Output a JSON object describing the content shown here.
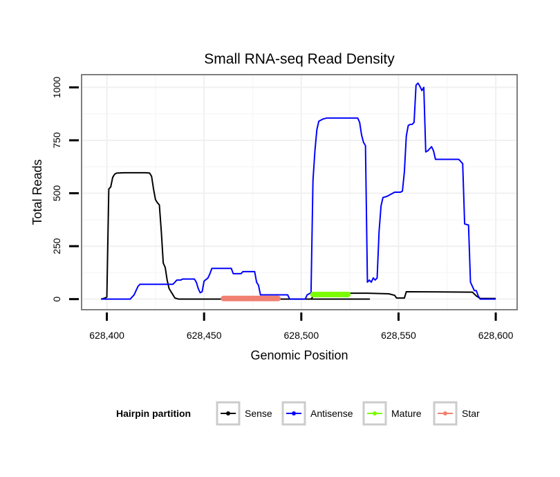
{
  "chart_data": {
    "type": "line",
    "title": "Small RNA-seq Read Density",
    "xlabel": "Genomic Position",
    "ylabel": "Total Reads",
    "xlim": [
      628387,
      628611
    ],
    "ylim": [
      -50,
      1060
    ],
    "x_ticks": [
      628400,
      628450,
      628500,
      628550,
      628600
    ],
    "x_tick_labels": [
      "628,400",
      "628,450",
      "628,500",
      "628,550",
      "628,600"
    ],
    "y_ticks": [
      0,
      250,
      500,
      750,
      1000
    ],
    "y_tick_labels": [
      "0",
      "250",
      "500",
      "750",
      "1000"
    ],
    "grid": true,
    "legend": {
      "title": "Hairpin partition",
      "position": "bottom",
      "entries": [
        {
          "name": "Sense",
          "color": "#000000"
        },
        {
          "name": "Antisense",
          "color": "#0000ff"
        },
        {
          "name": "Mature",
          "color": "#7cfc00"
        },
        {
          "name": "Star",
          "color": "#f08070"
        }
      ]
    },
    "series": [
      {
        "name": "Sense",
        "color": "#000000",
        "points": [
          [
            628397,
            0
          ],
          [
            628399,
            5
          ],
          [
            628400,
            10
          ],
          [
            628401,
            520
          ],
          [
            628402,
            530
          ],
          [
            628403,
            575
          ],
          [
            628404,
            590
          ],
          [
            628405,
            595
          ],
          [
            628409,
            597
          ],
          [
            628420,
            597
          ],
          [
            628422,
            595
          ],
          [
            628423,
            580
          ],
          [
            628424,
            520
          ],
          [
            628425,
            470
          ],
          [
            628426,
            455
          ],
          [
            628427,
            445
          ],
          [
            628428,
            320
          ],
          [
            628429,
            170
          ],
          [
            628430,
            150
          ],
          [
            628431,
            90
          ],
          [
            628432,
            50
          ],
          [
            628434,
            20
          ],
          [
            628435,
            5
          ],
          [
            628437,
            0
          ],
          [
            628535,
            0
          ],
          [
            628505,
            0
          ],
          [
            628507,
            25
          ],
          [
            628510,
            28
          ],
          [
            628534,
            28
          ],
          [
            628545,
            25
          ],
          [
            628548,
            18
          ],
          [
            628549,
            5
          ],
          [
            628553,
            5
          ],
          [
            628554,
            35
          ],
          [
            628588,
            33
          ],
          [
            628590,
            15
          ],
          [
            628592,
            3
          ],
          [
            628600,
            3
          ]
        ]
      },
      {
        "name": "Antisense",
        "color": "#0000ff",
        "points": [
          [
            628397,
            0
          ],
          [
            628412,
            0
          ],
          [
            628414,
            20
          ],
          [
            628416,
            60
          ],
          [
            628417,
            70
          ],
          [
            628434,
            70
          ],
          [
            628435,
            80
          ],
          [
            628436,
            90
          ],
          [
            628438,
            90
          ],
          [
            628439,
            95
          ],
          [
            628445,
            95
          ],
          [
            628446,
            80
          ],
          [
            628447,
            50
          ],
          [
            628448,
            30
          ],
          [
            628449,
            35
          ],
          [
            628450,
            85
          ],
          [
            628452,
            100
          ],
          [
            628453,
            120
          ],
          [
            628454,
            145
          ],
          [
            628464,
            145
          ],
          [
            628465,
            120
          ],
          [
            628469,
            120
          ],
          [
            628470,
            130
          ],
          [
            628476,
            130
          ],
          [
            628477,
            80
          ],
          [
            628478,
            65
          ],
          [
            628479,
            20
          ],
          [
            628493,
            20
          ],
          [
            628494,
            0
          ],
          [
            628502,
            0
          ],
          [
            628503,
            20
          ],
          [
            628505,
            30
          ],
          [
            628506,
            560
          ],
          [
            628507,
            700
          ],
          [
            628508,
            800
          ],
          [
            628509,
            840
          ],
          [
            628511,
            850
          ],
          [
            628513,
            855
          ],
          [
            628529,
            855
          ],
          [
            628530,
            835
          ],
          [
            628531,
            775
          ],
          [
            628532,
            740
          ],
          [
            628533,
            725
          ],
          [
            628534,
            80
          ],
          [
            628535,
            90
          ],
          [
            628536,
            80
          ],
          [
            628537,
            100
          ],
          [
            628538,
            90
          ],
          [
            628539,
            100
          ],
          [
            628540,
            320
          ],
          [
            628541,
            440
          ],
          [
            628542,
            480
          ],
          [
            628544,
            485
          ],
          [
            628545,
            490
          ],
          [
            628548,
            505
          ],
          [
            628551,
            505
          ],
          [
            628552,
            510
          ],
          [
            628553,
            600
          ],
          [
            628554,
            770
          ],
          [
            628555,
            820
          ],
          [
            628556,
            825
          ],
          [
            628557,
            825
          ],
          [
            628558,
            835
          ],
          [
            628559,
            1010
          ],
          [
            628560,
            1020
          ],
          [
            628561,
            1005
          ],
          [
            628562,
            985
          ],
          [
            628563,
            1000
          ],
          [
            628564,
            695
          ],
          [
            628565,
            700
          ],
          [
            628566,
            710
          ],
          [
            628567,
            720
          ],
          [
            628568,
            700
          ],
          [
            628569,
            660
          ],
          [
            628581,
            660
          ],
          [
            628582,
            650
          ],
          [
            628583,
            640
          ],
          [
            628584,
            355
          ],
          [
            628586,
            350
          ],
          [
            628587,
            80
          ],
          [
            628588,
            60
          ],
          [
            628589,
            40
          ],
          [
            628590,
            40
          ],
          [
            628591,
            15
          ],
          [
            628592,
            0
          ],
          [
            628600,
            0
          ]
        ]
      },
      {
        "name": "Mature",
        "color": "#7cfc00",
        "points": [
          [
            628506,
            22
          ],
          [
            628524,
            22
          ]
        ]
      },
      {
        "name": "Star",
        "color": "#f08070",
        "points": [
          [
            628460,
            3
          ],
          [
            628488,
            3
          ]
        ]
      }
    ]
  }
}
